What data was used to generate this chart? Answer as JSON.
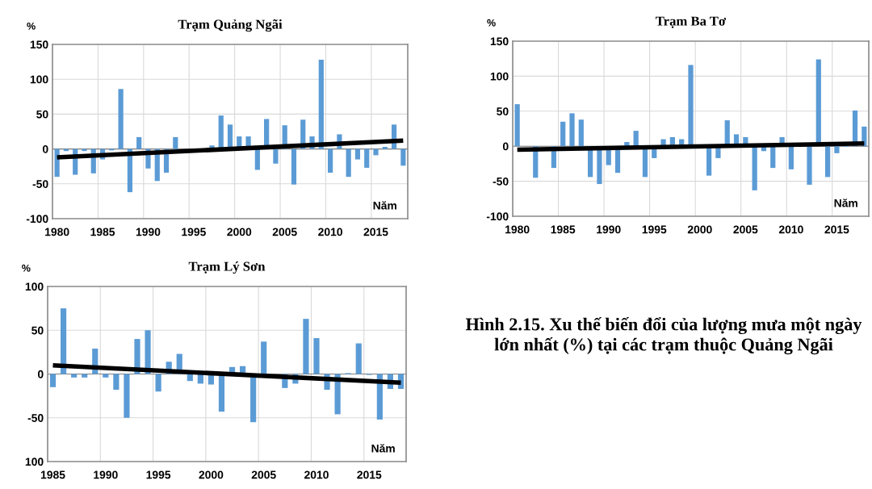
{
  "chart_data": [
    {
      "type": "bar",
      "title": "Trạm Quảng Ngãi",
      "ylabel": "%",
      "xlabel": "Năm",
      "grid": true,
      "x": [
        1980,
        1981,
        1982,
        1983,
        1984,
        1985,
        1986,
        1987,
        1988,
        1989,
        1990,
        1991,
        1992,
        1993,
        1994,
        1995,
        1996,
        1997,
        1998,
        1999,
        2000,
        2001,
        2002,
        2003,
        2004,
        2005,
        2006,
        2007,
        2008,
        2009,
        2010,
        2011,
        2012,
        2013,
        2014,
        2015,
        2016,
        2017,
        2018
      ],
      "series": [
        {
          "color": "#5b9bd5",
          "values": [
            -40,
            -3,
            -37,
            -3,
            -35,
            -15,
            -2,
            86,
            -62,
            17,
            -28,
            -46,
            -34,
            17,
            0,
            0,
            0,
            5,
            48,
            35,
            18,
            18,
            -30,
            43,
            -21,
            34,
            -51,
            42,
            18,
            128,
            -34,
            21,
            -40,
            -15,
            -27,
            -9,
            3,
            35,
            -24
          ]
        },
        {
          "type": "line",
          "color": "#000000",
          "x": [
            1980,
            2018
          ],
          "values": [
            -12,
            12
          ]
        }
      ],
      "xlim": [
        1979.5,
        2018.5
      ],
      "xticks": [
        {
          "value": 1984.5,
          "label": null
        },
        {
          "value": 1989.5,
          "label": null
        },
        {
          "value": 1994.5,
          "label": null
        },
        {
          "value": 1999.5,
          "label": null
        },
        {
          "value": 2004.5,
          "label": null
        },
        {
          "value": 2009.5,
          "label": null
        },
        {
          "value": 2014.5,
          "label": null
        },
        1980,
        1985,
        1990,
        1995,
        2000,
        2005,
        2010,
        2015
      ],
      "ylim": [
        -100,
        150
      ],
      "yticks": [
        -100,
        -50,
        0,
        50,
        100,
        150
      ]
    },
    {
      "type": "bar",
      "title": "Trạm Ba Tơ",
      "ylabel": "%",
      "xlabel": "Năm",
      "grid": true,
      "x": [
        1980,
        1981,
        1982,
        1983,
        1984,
        1985,
        1986,
        1987,
        1988,
        1989,
        1990,
        1991,
        1992,
        1993,
        1994,
        1995,
        1996,
        1997,
        1998,
        1999,
        2000,
        2001,
        2002,
        2003,
        2004,
        2005,
        2006,
        2007,
        2008,
        2009,
        2010,
        2011,
        2012,
        2013,
        2014,
        2015,
        2016,
        2017,
        2018
      ],
      "series": [
        {
          "color": "#5b9bd5",
          "values": [
            60,
            null,
            -45,
            null,
            -31,
            35,
            47,
            38,
            -44,
            -54,
            -27,
            -38,
            6,
            22,
            -44,
            -17,
            10,
            13,
            10,
            116,
            0,
            -42,
            -17,
            37,
            17,
            13,
            -63,
            -7,
            -31,
            13,
            -33,
            0,
            -55,
            124,
            -44,
            -10,
            -1,
            51,
            28
          ]
        },
        {
          "type": "line",
          "color": "#000000",
          "x": [
            1980,
            2018
          ],
          "values": [
            -5,
            4
          ]
        }
      ],
      "xlim": [
        1979.5,
        2018.5
      ],
      "xticks": [
        {
          "value": 1984.5,
          "label": null
        },
        {
          "value": 1989.5,
          "label": null
        },
        {
          "value": 1994.5,
          "label": null
        },
        {
          "value": 1999.5,
          "label": null
        },
        {
          "value": 2004.5,
          "label": null
        },
        {
          "value": 2009.5,
          "label": null
        },
        {
          "value": 2014.5,
          "label": null
        },
        1980,
        1985,
        1990,
        1995,
        2000,
        2005,
        2010,
        2015
      ],
      "ylim": [
        -100,
        150
      ],
      "yticks": [
        -100,
        -50,
        0,
        50,
        100,
        150
      ]
    },
    {
      "type": "bar",
      "title": "Trạm Lý Sơn",
      "ylabel": "%",
      "xlabel": "Năm",
      "grid": true,
      "x": [
        1985,
        1986,
        1987,
        1988,
        1989,
        1990,
        1991,
        1992,
        1993,
        1994,
        1995,
        1996,
        1997,
        1998,
        1999,
        2000,
        2001,
        2002,
        2003,
        2004,
        2005,
        2006,
        2007,
        2008,
        2009,
        2010,
        2011,
        2012,
        2013,
        2014,
        2015,
        2016,
        2017,
        2018
      ],
      "series": [
        {
          "color": "#5b9bd5",
          "values": [
            -15,
            75,
            -4,
            -4,
            29,
            -4,
            -18,
            -50,
            40,
            50,
            -20,
            14,
            23,
            -8,
            -11,
            -12,
            -43,
            8,
            9,
            -55,
            37,
            0,
            -16,
            -11,
            63,
            41,
            -18,
            -46,
            1,
            35,
            -1,
            -52,
            -17,
            -17
          ]
        },
        {
          "type": "line",
          "color": "#000000",
          "x": [
            1985,
            2018
          ],
          "values": [
            10,
            -10
          ]
        }
      ],
      "xlim": [
        1984.5,
        2018.5
      ],
      "xticks": [
        {
          "value": 1989.5,
          "label": null
        },
        {
          "value": 1994.5,
          "label": null
        },
        {
          "value": 1999.5,
          "label": null
        },
        {
          "value": 2004.5,
          "label": null
        },
        {
          "value": 2009.5,
          "label": null
        },
        {
          "value": 2014.5,
          "label": null
        },
        1985,
        1990,
        1995,
        2000,
        2005,
        2010,
        2015
      ],
      "ylim": [
        -100,
        100
      ],
      "yticks": [
        {
          "value": -100,
          "label": "100"
        },
        -50,
        0,
        50,
        100
      ],
      "annotations": [
        "Hình 2.15. Xu thế biến đổi của lượng mưa một ngày lớn nhất (%) tại các trạm thuộc Quảng Ngãi"
      ]
    }
  ]
}
